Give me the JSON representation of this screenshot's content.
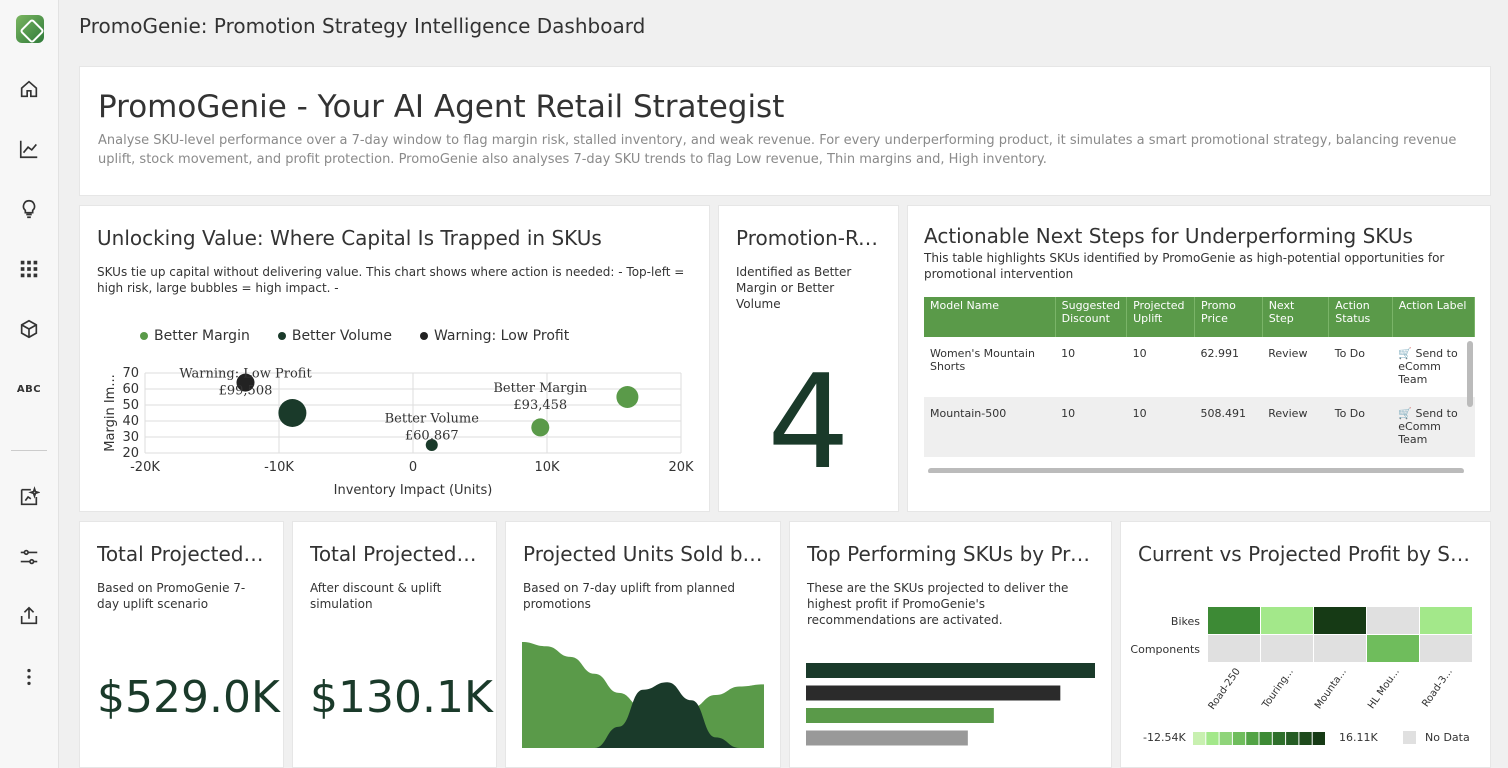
{
  "app": {
    "title": "PromoGenie: Promotion Strategy Intelligence Dashboard"
  },
  "nav": [
    "home-icon",
    "line-chart-icon",
    "lightbulb-icon",
    "grid-icon",
    "cube-icon",
    "abc-icon",
    "sparkle-chart-icon",
    "sliders-icon",
    "share-icon",
    "more-vertical-icon"
  ],
  "nav_abc": "ABC",
  "hero": {
    "title": "PromoGenie - Your AI Agent Retail Strategist",
    "description": "Analyse SKU-level performance over a 7-day window to flag margin risk, stalled inventory, and weak revenue. For every underperforming product, it simulates a smart promotional strategy, balancing revenue uplift, stock movement, and profit protection. PromoGenie also analyses 7-day SKU trends to flag Low revenue, Thin margins and, High inventory."
  },
  "bubble": {
    "title": "Unlocking Value: Where Capital Is Trapped in SKUs",
    "subtitle": "SKUs tie up capital without delivering value. This chart shows where action is needed: - Top-left = high risk, large bubbles = high impact. -",
    "colors": {
      "Better Margin": "#5a9a49",
      "Better Volume": "#1a3a2a",
      "Warning: Low Profit": "#222222"
    }
  },
  "kpi": {
    "title": "Promotion-Rea...",
    "subtitle": "Identified as Better Margin or Better Volume",
    "value": "4"
  },
  "table": {
    "title": "Actionable Next Steps for Underperforming SKUs",
    "subtitle": "This table highlights SKUs identified by PromoGenie as high-potential opportunities for promotional intervention",
    "columns": [
      "Model Name",
      "Suggested Discount",
      "Projected Uplift",
      "Promo Price",
      "Next Step",
      "Action Status",
      "Action Label"
    ],
    "rows": [
      [
        "Women's Mountain Shorts",
        "10",
        "10",
        "62.991",
        "Review",
        "To Do",
        "🛒 Send to eComm Team"
      ],
      [
        "Mountain-500",
        "10",
        "10",
        "508.491",
        "Review",
        "To Do",
        "🛒 Send to eComm Team"
      ]
    ]
  },
  "revenue": {
    "title": "Total Projected Re...",
    "subtitle": "Based on PromoGenie 7-day uplift scenario",
    "value": "$529.0K"
  },
  "profit": {
    "title": "Total Projected Pr...",
    "subtitle": "After discount & uplift simulation",
    "value": "$130.1K"
  },
  "units": {
    "title": "Projected Units Sold by W...",
    "subtitle": "Based on 7-day uplift from planned promotions"
  },
  "top_skus": {
    "title": "Top Performing SKUs by Project...",
    "subtitle": "These are the SKUs projected to deliver the highest profit if PromoGenie's recommendations are activated."
  },
  "heatmap": {
    "title": "Current vs Projected Profit by SKU an..."
  },
  "chart_data": [
    {
      "type": "scatter",
      "xlabel": "Inventory Impact (Units)",
      "ylabel": "Margin Im...",
      "xlim": [
        -20000,
        20000
      ],
      "ylim": [
        20,
        70
      ],
      "xticks": [
        "-20K",
        "-10K",
        "0",
        "10K",
        "20K"
      ],
      "yticks": [
        "70",
        "60",
        "50",
        "40",
        "30",
        "20"
      ],
      "legend": [
        "Better Margin",
        "Better Volume",
        "Warning: Low Profit"
      ],
      "legend_position": "top",
      "points": [
        {
          "series": "Warning: Low Profit",
          "x": -12500,
          "y": 64,
          "size": 9
        },
        {
          "series": "Better Volume",
          "x": -9000,
          "y": 45,
          "size": 14
        },
        {
          "series": "Better Volume",
          "x": 1400,
          "y": 25,
          "size": 6
        },
        {
          "series": "Better Margin",
          "x": 9500,
          "y": 36,
          "size": 9
        },
        {
          "series": "Better Margin",
          "x": 16000,
          "y": 55,
          "size": 11
        }
      ],
      "annotations": [
        {
          "label": "Warning: Low Profit",
          "value": "£99,508",
          "x": -12500,
          "y": 64
        },
        {
          "label": "Better Volume",
          "value": "£60,867",
          "x": 1400,
          "y": 36
        },
        {
          "label": "Better Margin",
          "value": "£93,458",
          "x": 9500,
          "y": 55
        }
      ]
    },
    {
      "type": "area",
      "series": [
        {
          "values": [
            100,
            96,
            86,
            70,
            52,
            38,
            32,
            38,
            50,
            58,
            60
          ]
        },
        {
          "values": [
            0,
            0,
            0,
            0,
            20,
            55,
            62,
            45,
            10,
            0,
            0
          ]
        }
      ]
    },
    {
      "type": "bar",
      "orientation": "horizontal",
      "values": [
        100,
        88,
        65,
        56
      ],
      "colors": [
        "#1a3a2a",
        "#2b2b2b",
        "#5a9a49",
        "#999999"
      ]
    },
    {
      "type": "heatmap",
      "rows": [
        "Bikes",
        "Components"
      ],
      "columns": [
        "Road-250",
        "Touring...",
        "Mounta...",
        "HL Mou...",
        "Road-3..."
      ],
      "values": [
        [
          9,
          2,
          16,
          null,
          1
        ],
        [
          null,
          null,
          null,
          6,
          null
        ]
      ],
      "min_label": "-12.54K",
      "max_label": "16.11K",
      "no_data_label": "No Data"
    }
  ]
}
